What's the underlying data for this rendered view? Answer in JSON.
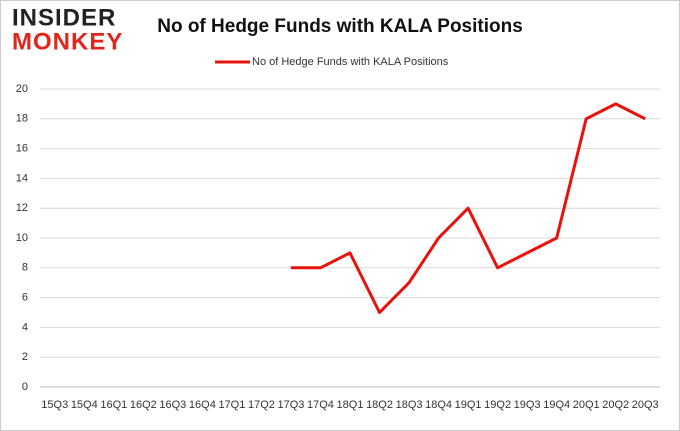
{
  "logo": {
    "top": "INSIDER",
    "bottom": "MONKEY"
  },
  "chart_data": {
    "type": "line",
    "title": "No of Hedge Funds with KALA Positions",
    "categories": [
      "15Q3",
      "15Q4",
      "16Q1",
      "16Q2",
      "16Q3",
      "16Q4",
      "17Q1",
      "17Q2",
      "17Q3",
      "17Q4",
      "18Q1",
      "18Q2",
      "18Q3",
      "18Q4",
      "19Q1",
      "19Q2",
      "19Q3",
      "19Q4",
      "20Q1",
      "20Q2",
      "20Q3"
    ],
    "series": [
      {
        "name": "No of Hedge Funds with KALA Positions",
        "color": "#e8120c",
        "values": [
          null,
          null,
          null,
          null,
          null,
          null,
          null,
          null,
          8,
          8,
          9,
          5,
          7,
          10,
          12,
          8,
          9,
          10,
          18,
          19,
          18
        ]
      }
    ],
    "ylim": [
      0,
      20
    ],
    "yticks": [
      0,
      2,
      4,
      6,
      8,
      10,
      12,
      14,
      16,
      18,
      20
    ],
    "grid": true,
    "legend": "top"
  }
}
